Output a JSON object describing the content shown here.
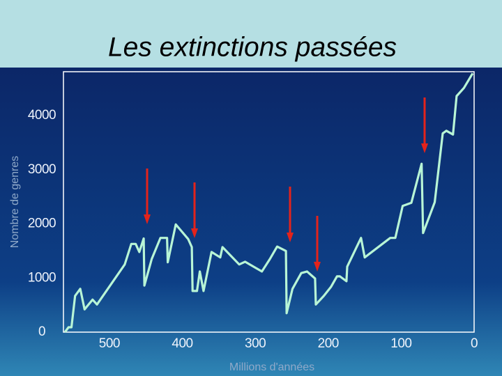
{
  "chart_data": {
    "type": "line",
    "title": "Les extinctions passées",
    "x_label": "Millions d'années",
    "y_label": "Nombre de genres",
    "color": "#b8f5d6",
    "x": [
      561,
      556,
      552,
      547,
      540,
      534,
      523,
      517,
      479,
      470,
      464,
      459,
      453,
      452,
      442,
      430,
      421,
      420,
      409,
      392,
      387,
      386,
      380,
      376,
      371,
      360,
      348,
      345,
      322,
      314,
      291,
      280,
      270,
      258,
      257,
      249,
      237,
      229,
      218,
      217,
      206,
      196,
      188,
      184,
      175,
      174,
      155,
      150,
      115,
      108,
      98,
      86,
      72,
      70,
      54,
      43,
      38,
      29,
      24,
      14,
      2
    ],
    "values": [
      0,
      90,
      90,
      670,
      800,
      420,
      600,
      510,
      1250,
      1630,
      1630,
      1480,
      1730,
      860,
      1350,
      1740,
      1740,
      1290,
      1990,
      1720,
      1570,
      760,
      760,
      1120,
      760,
      1480,
      1380,
      1570,
      1250,
      1300,
      1120,
      1350,
      1580,
      1500,
      350,
      800,
      1090,
      1120,
      990,
      510,
      670,
      840,
      1030,
      1030,
      940,
      1210,
      1740,
      1380,
      1740,
      1740,
      2330,
      2390,
      3110,
      1830,
      2400,
      3670,
      3720,
      3650,
      4360,
      4510,
      4780
    ],
    "xlim": [
      563,
      0
    ],
    "xticks": [
      500,
      400,
      300,
      200,
      100,
      0
    ],
    "ylim": [
      0,
      4810
    ],
    "yticks": [
      0,
      1000,
      2000,
      3000,
      4000
    ],
    "grid": false
  }
}
